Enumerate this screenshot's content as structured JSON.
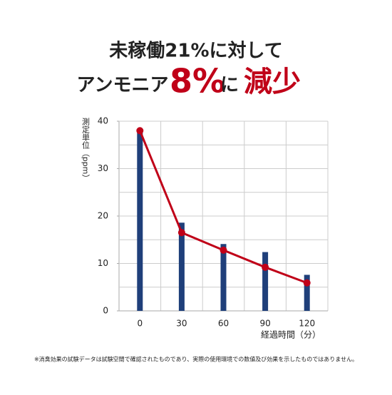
{
  "chart_data": {
    "type": "bar-line",
    "title": "未稼働21%に対して",
    "subtitle_parts": [
      "アンモニア",
      "8%",
      "に",
      "減少"
    ],
    "y_label": "測定単位（ppm）",
    "x_label": "経過時間（分）",
    "x": [
      0,
      30,
      60,
      90,
      120
    ],
    "xlim": [
      -15,
      135
    ],
    "xticks": [
      0,
      30,
      60,
      90,
      120
    ],
    "ylim": [
      0,
      40
    ],
    "yticks": [
      0,
      10,
      20,
      30,
      40
    ],
    "ygrid": [
      5,
      10,
      15,
      20,
      25,
      30,
      35,
      40
    ],
    "series": [
      {
        "kind": "bar",
        "color": "#1f3f7a",
        "values": [
          38,
          18.6,
          14.1,
          12.4,
          7.6
        ]
      },
      {
        "kind": "line",
        "color": "#c00018",
        "values": [
          38,
          16.5,
          12.8,
          9.2,
          5.9
        ]
      }
    ],
    "note": "※消臭効果の試験データは試験空間で確認されたものであり、実際の使用環境での数値及び効果を示したものではありません。"
  }
}
